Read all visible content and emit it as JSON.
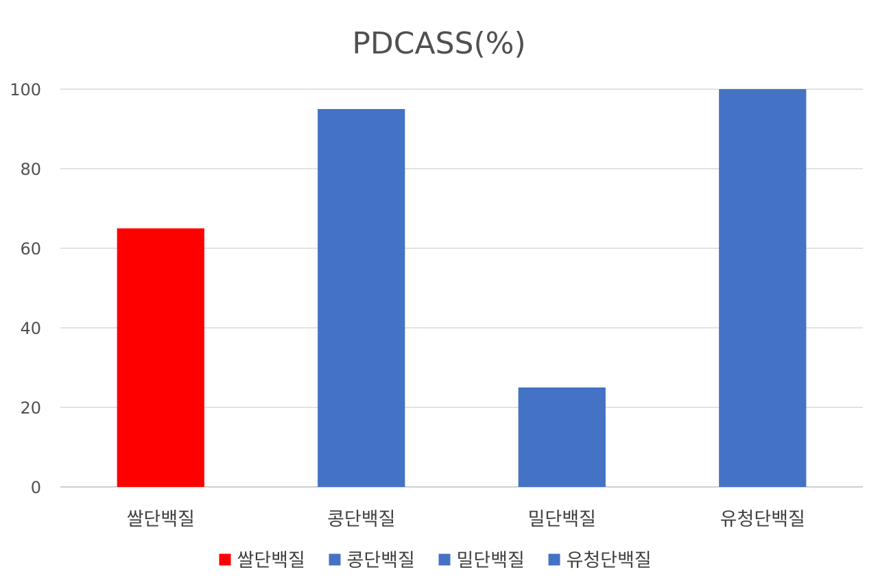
{
  "chart_data": {
    "type": "bar",
    "title": "PDCASS(%)",
    "xlabel": "",
    "ylabel": "",
    "categories": [
      "쌀단백질",
      "콩단백질",
      "밀단백질",
      "유청단백질"
    ],
    "values": [
      65,
      95,
      25,
      100
    ],
    "colors": [
      "#FF0000",
      "#4472C4",
      "#4472C4",
      "#4472C4"
    ],
    "ylim": [
      0,
      100
    ],
    "yticks": [
      0,
      20,
      40,
      60,
      80,
      100
    ],
    "grid": true,
    "legend": {
      "position": "bottom",
      "entries": [
        {
          "label": "쌀단백질",
          "color": "#FF0000"
        },
        {
          "label": "콩단백질",
          "color": "#4472C4"
        },
        {
          "label": "밀단백질",
          "color": "#4472C4"
        },
        {
          "label": "유청단백질",
          "color": "#4472C4"
        }
      ]
    }
  }
}
